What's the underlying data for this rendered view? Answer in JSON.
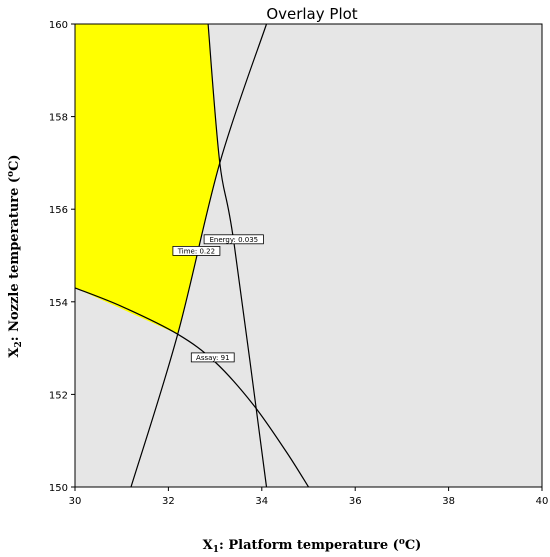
{
  "chart_data": {
    "type": "contour",
    "title": "Overlay Plot",
    "xlabel": {
      "prefix": "X",
      "subscript": "1",
      "text": ": Platform temperature (",
      "unit_sup": "o",
      "unit_tail": "C)"
    },
    "ylabel": {
      "prefix": "X",
      "subscript": "2",
      "text": ": Nozzle temperature (",
      "unit_sup": "o",
      "unit_tail": "C)"
    },
    "xlim": [
      30,
      40
    ],
    "ylim": [
      150,
      160
    ],
    "xticks": [
      30,
      32,
      34,
      36,
      38,
      40
    ],
    "yticks": [
      150,
      152,
      154,
      156,
      158,
      160
    ],
    "colors": {
      "feasible_region": "#ffff00",
      "background": "#e6e6e6",
      "line": "#000000"
    },
    "feasible_region": [
      {
        "x": 30,
        "y": 160
      },
      {
        "x": 32.85,
        "y": 160
      },
      {
        "x": 33.1,
        "y": 157.0
      },
      {
        "x": 32.2,
        "y": 153.3
      },
      {
        "x": 30,
        "y": 154.3
      }
    ],
    "contours": [
      {
        "name": "Time",
        "label": "Time: 0.22",
        "points": [
          [
            31.2,
            150
          ],
          [
            32.2,
            153.3
          ],
          [
            33.1,
            157.0
          ],
          [
            34.1,
            160
          ]
        ],
        "label_at": [
          32.6,
          155.1
        ]
      },
      {
        "name": "Energy",
        "label": "Energy: 0.035",
        "points": [
          [
            32.85,
            160
          ],
          [
            33.1,
            157.0
          ],
          [
            33.4,
            155.3
          ],
          [
            34.1,
            150
          ]
        ],
        "label_at": [
          33.4,
          155.35
        ]
      },
      {
        "name": "Assay",
        "label": "Assay: 91",
        "points": [
          [
            30,
            154.3
          ],
          [
            31,
            153.9
          ],
          [
            32.2,
            153.3
          ],
          [
            33,
            152.7
          ],
          [
            33.8,
            151.8
          ],
          [
            34.5,
            150.8
          ],
          [
            35,
            150
          ]
        ],
        "label_at": [
          32.95,
          152.8
        ]
      }
    ]
  }
}
